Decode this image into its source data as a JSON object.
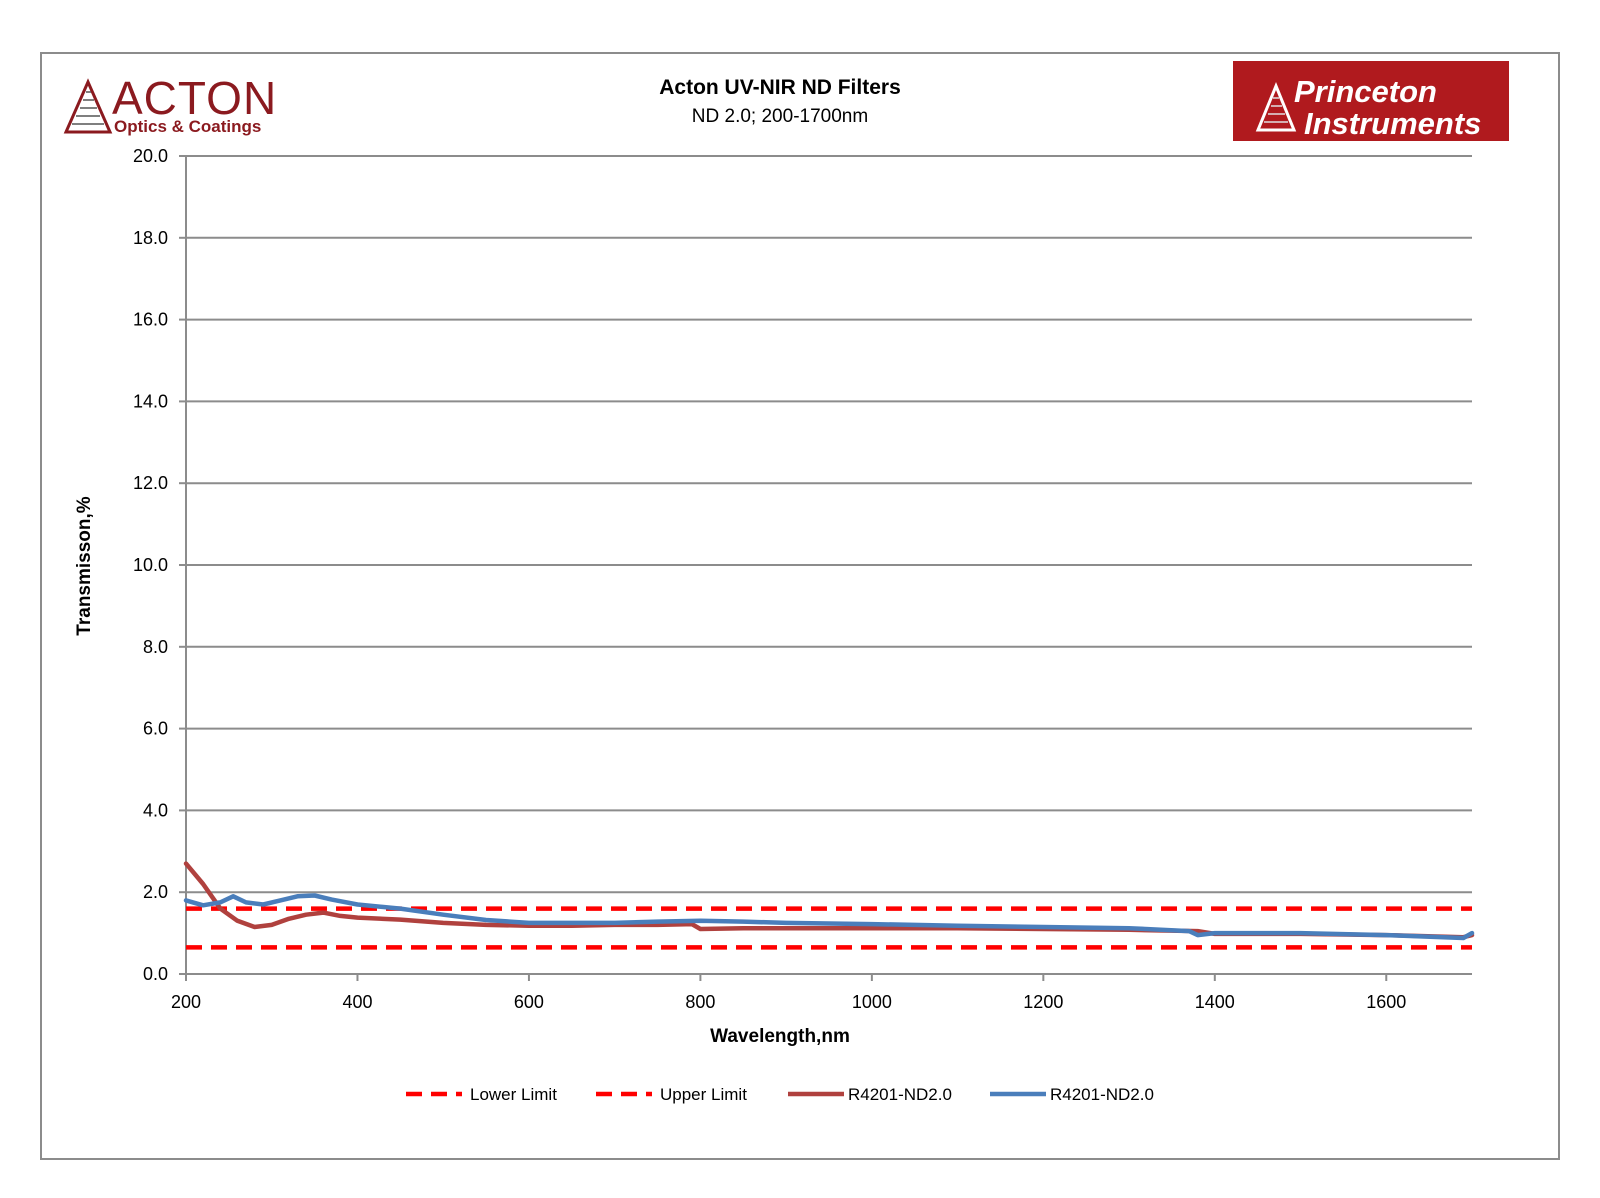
{
  "logos": {
    "left": {
      "name": "ACTON",
      "sub": "Optics & Coatings",
      "color": "#8b1a1f"
    },
    "right": {
      "line1": "Princeton",
      "line2": "Instruments",
      "bg": "#b01a1e"
    }
  },
  "chart_data": {
    "type": "line",
    "title": "Acton UV-NIR ND Filters",
    "subtitle": "ND 2.0;  200-1700nm",
    "xlabel": "Wavelength,nm",
    "ylabel": "Transmisson,%",
    "xlim": [
      200,
      1700
    ],
    "ylim": [
      0,
      20
    ],
    "xticks": [
      200,
      400,
      600,
      800,
      1000,
      1200,
      1400,
      1600
    ],
    "yticks": [
      "0.0",
      "2.0",
      "4.0",
      "6.0",
      "8.0",
      "10.0",
      "12.0",
      "14.0",
      "16.0",
      "18.0",
      "20.0"
    ],
    "grid": true,
    "legend_position": "bottom",
    "series": [
      {
        "name": "Lower Limit",
        "style": "dashed",
        "color": "#ff0000",
        "x": [
          200,
          1700
        ],
        "y": [
          0.65,
          0.65
        ]
      },
      {
        "name": "Upper Limit",
        "style": "dashed",
        "color": "#ff0000",
        "x": [
          200,
          1700
        ],
        "y": [
          1.6,
          1.6
        ]
      },
      {
        "name": "R4201-ND2.0",
        "style": "solid",
        "color": "#b0413e",
        "x": [
          200,
          220,
          240,
          260,
          280,
          300,
          320,
          340,
          360,
          380,
          400,
          450,
          500,
          550,
          600,
          650,
          700,
          750,
          790,
          800,
          850,
          900,
          1000,
          1100,
          1200,
          1300,
          1380,
          1400,
          1500,
          1600,
          1690,
          1700
        ],
        "y": [
          2.7,
          2.2,
          1.6,
          1.3,
          1.15,
          1.2,
          1.35,
          1.45,
          1.5,
          1.42,
          1.38,
          1.33,
          1.25,
          1.2,
          1.18,
          1.18,
          1.2,
          1.2,
          1.22,
          1.1,
          1.12,
          1.12,
          1.12,
          1.12,
          1.1,
          1.08,
          1.05,
          0.98,
          0.98,
          0.95,
          0.9,
          0.95
        ]
      },
      {
        "name": "R4201-ND2.0",
        "style": "solid",
        "color": "#4a7ebb",
        "x": [
          200,
          220,
          240,
          255,
          270,
          290,
          310,
          330,
          350,
          370,
          400,
          450,
          500,
          550,
          600,
          650,
          700,
          750,
          800,
          850,
          900,
          1000,
          1100,
          1200,
          1300,
          1370,
          1380,
          1400,
          1500,
          1600,
          1690,
          1700
        ],
        "y": [
          1.8,
          1.68,
          1.75,
          1.9,
          1.75,
          1.7,
          1.8,
          1.9,
          1.92,
          1.82,
          1.7,
          1.6,
          1.45,
          1.32,
          1.25,
          1.25,
          1.25,
          1.28,
          1.3,
          1.28,
          1.25,
          1.22,
          1.18,
          1.15,
          1.12,
          1.05,
          0.95,
          1.0,
          1.0,
          0.95,
          0.88,
          1.0
        ]
      }
    ]
  }
}
